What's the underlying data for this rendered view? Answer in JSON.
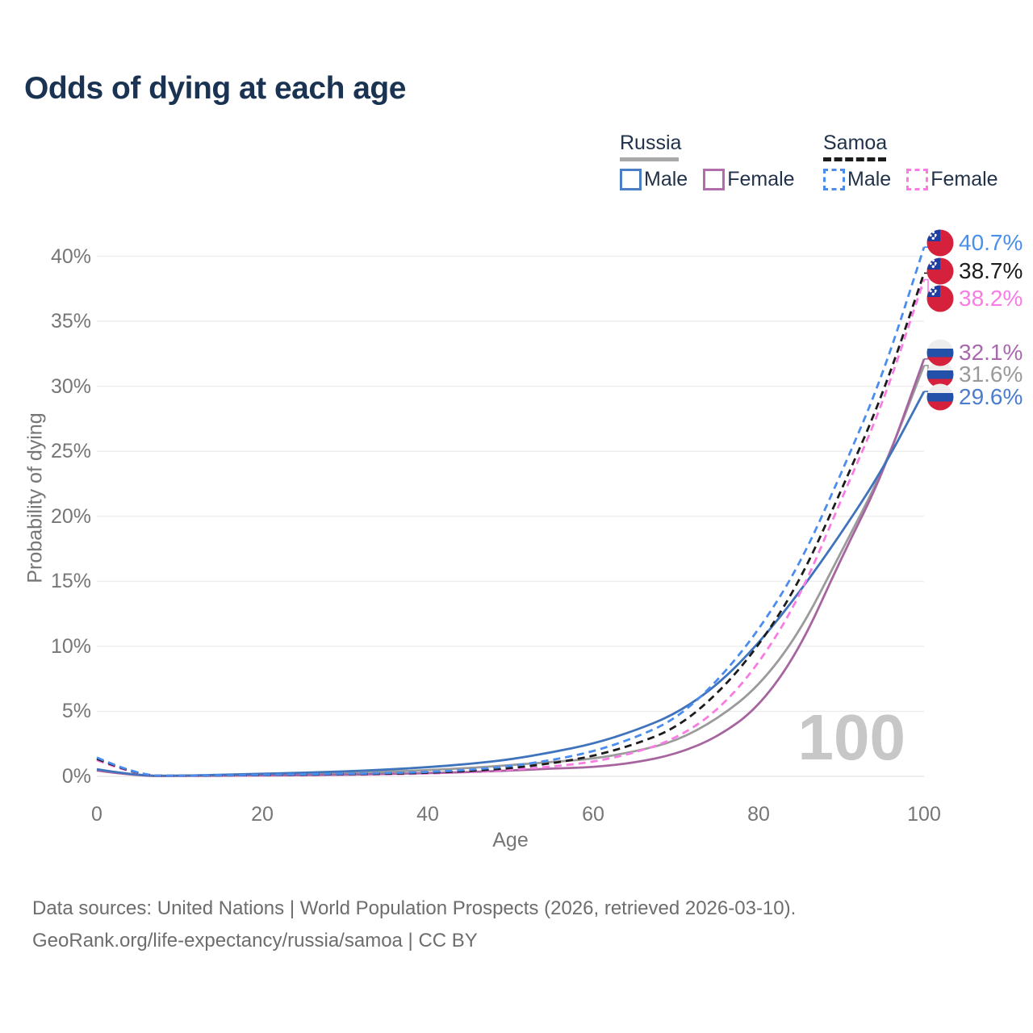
{
  "title": "Odds of dying at each age",
  "legend": {
    "groups": [
      {
        "label": "Russia",
        "line_style": "solid",
        "line_color": "#a9a9a9",
        "items": [
          {
            "label": "Male",
            "color": "#4b7ec5",
            "dashed": false
          },
          {
            "label": "Female",
            "color": "#b26cab",
            "dashed": false
          }
        ]
      },
      {
        "label": "Samoa",
        "line_style": "dashed",
        "line_color": "#1c1c1c",
        "items": [
          {
            "label": "Male",
            "color": "#4b8def",
            "dashed": true
          },
          {
            "label": "Female",
            "color": "#f97ce4",
            "dashed": true
          }
        ]
      }
    ]
  },
  "chart_data": {
    "type": "line",
    "title": "Odds of dying at each age",
    "xlabel": "Age",
    "ylabel": "Probability of dying",
    "xlim": [
      0,
      100
    ],
    "ylim": [
      0,
      42
    ],
    "x_ticks": [
      0,
      20,
      40,
      60,
      80,
      100
    ],
    "y_tick_labels": [
      "0%",
      "5%",
      "10%",
      "15%",
      "20%",
      "25%",
      "30%",
      "35%",
      "40%"
    ],
    "grid": "horizontal",
    "legend_position": "top-right",
    "watermark": "100",
    "ages": [
      0,
      5,
      10,
      15,
      20,
      25,
      30,
      35,
      40,
      45,
      50,
      55,
      60,
      65,
      70,
      75,
      80,
      85,
      90,
      95,
      100
    ],
    "series": [
      {
        "id": "russia-both",
        "name": "Russia — Both sexes",
        "country": "Russia",
        "sex": "Both sexes",
        "color": "#9b9b9b",
        "dashed": false,
        "flag": "russia",
        "values": [
          0.5,
          0.035,
          0.04,
          0.09,
          0.14,
          0.19,
          0.26,
          0.35,
          0.48,
          0.64,
          0.87,
          1.1,
          1.35,
          1.9,
          2.7,
          4.4,
          6.9,
          11.1,
          17.3,
          23.4,
          31.6
        ],
        "end_label": {
          "text": "31.6%",
          "color": "#9a9a9a"
        }
      },
      {
        "id": "russia-female",
        "name": "Russia — Female",
        "country": "Russia",
        "sex": "Female",
        "color": "#a7659f",
        "dashed": false,
        "flag": "russia",
        "values": [
          0.45,
          0.03,
          0.03,
          0.05,
          0.07,
          0.09,
          0.13,
          0.18,
          0.25,
          0.33,
          0.45,
          0.6,
          0.7,
          1.05,
          1.7,
          3.0,
          5.3,
          9.8,
          16.8,
          23.2,
          32.1
        ],
        "end_label": {
          "text": "32.1%",
          "color": "#a869ae"
        }
      },
      {
        "id": "russia-male",
        "name": "Russia — Male",
        "country": "Russia",
        "sex": "Male",
        "color": "#3f74bc",
        "dashed": false,
        "flag": "russia",
        "values": [
          0.55,
          0.04,
          0.05,
          0.12,
          0.2,
          0.28,
          0.38,
          0.52,
          0.7,
          0.95,
          1.3,
          1.85,
          2.5,
          3.5,
          4.8,
          7.0,
          10.2,
          14.2,
          18.7,
          23.6,
          29.6
        ],
        "end_label": {
          "text": "29.6%",
          "color": "#4b7ccd"
        }
      },
      {
        "id": "samoa-female",
        "name": "Samoa — Female",
        "country": "Samoa",
        "sex": "Female",
        "color": "#f97ce4",
        "dashed": true,
        "flag": "samoa",
        "values": [
          1.25,
          0.05,
          0.04,
          0.06,
          0.08,
          0.1,
          0.13,
          0.16,
          0.22,
          0.32,
          0.5,
          0.75,
          1.1,
          1.8,
          2.9,
          5.0,
          8.6,
          13.8,
          21.3,
          28.6,
          38.2
        ],
        "end_label": {
          "text": "38.2%",
          "color": "#f87ce6"
        }
      },
      {
        "id": "samoa-both",
        "name": "Samoa — Both sexes",
        "country": "Samoa",
        "sex": "Both sexes",
        "color": "#1c1c1c",
        "dashed": true,
        "flag": "samoa",
        "values": [
          1.35,
          0.055,
          0.045,
          0.07,
          0.1,
          0.12,
          0.16,
          0.2,
          0.27,
          0.4,
          0.62,
          1.0,
          1.55,
          2.45,
          3.7,
          6.3,
          10.0,
          15.0,
          22.0,
          29.3,
          38.7
        ],
        "end_label": {
          "text": "38.7%",
          "color": "#1c1c1c"
        }
      },
      {
        "id": "samoa-male",
        "name": "Samoa — Male",
        "country": "Samoa",
        "sex": "Male",
        "color": "#4b8def",
        "dashed": true,
        "flag": "samoa",
        "values": [
          1.45,
          0.06,
          0.05,
          0.08,
          0.12,
          0.15,
          0.19,
          0.25,
          0.33,
          0.5,
          0.78,
          1.25,
          1.9,
          2.95,
          4.4,
          7.3,
          11.2,
          16.3,
          23.3,
          30.8,
          40.7
        ],
        "end_label": {
          "text": "40.7%",
          "color": "#4a8fe8"
        }
      }
    ]
  },
  "footer": {
    "line1": "Data sources: United Nations | World Population Prospects (2026, retrieved 2026-03-10).",
    "line2": "GeoRank.org/life-expectancy/russia/samoa | CC BY"
  }
}
